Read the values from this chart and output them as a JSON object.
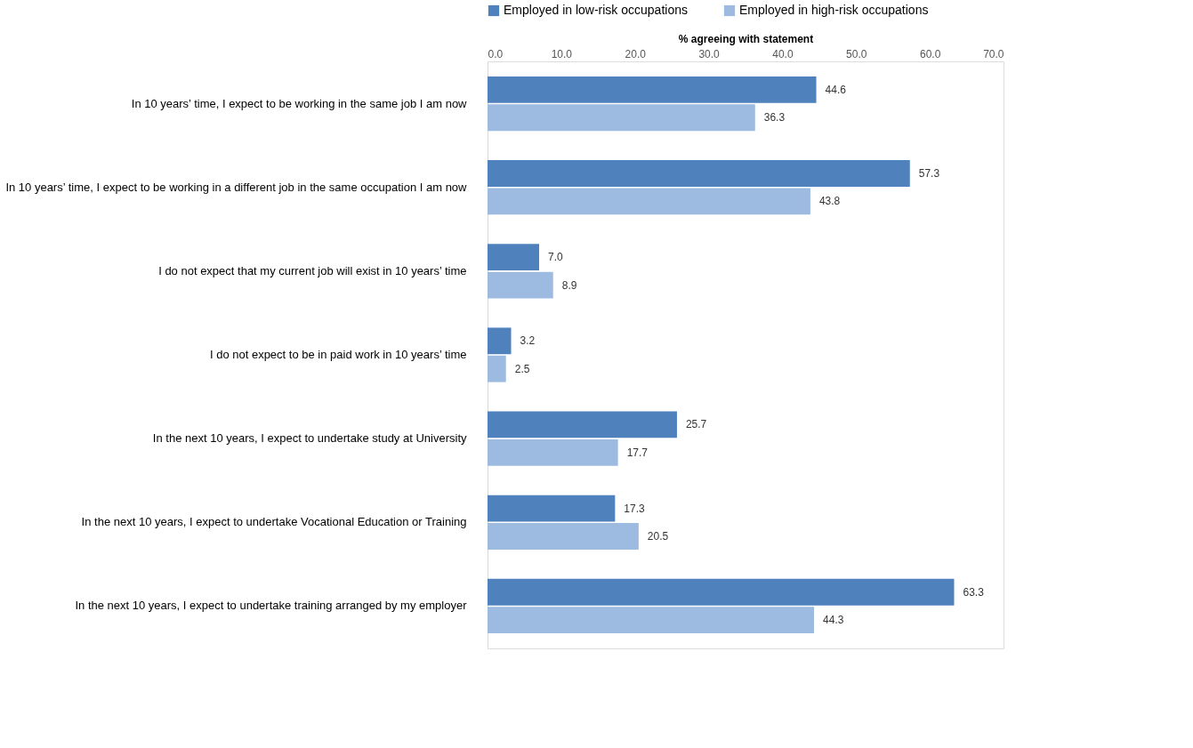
{
  "chart_data": {
    "type": "bar",
    "orientation": "horizontal",
    "xlabel": "% agreeing with statement",
    "categories": [
      "In 10 years’ time, I expect to be working in the same job I am now",
      "In 10 years’ time, I expect to be working in a different job in the same occupation I am now",
      "I do not expect that my current job will exist in 10 years’ time",
      "I do not expect to be in paid work in 10 years’ time",
      "In the next 10 years, I expect to undertake study at University",
      "In the next 10 years, I expect to undertake Vocational Education or Training",
      "In the next 10 years, I expect to undertake training arranged by my employer"
    ],
    "series": [
      {
        "name": "Employed in low-risk occupations",
        "color": "#4f81bd",
        "values": [
          44.6,
          57.3,
          7.0,
          3.2,
          25.7,
          17.3,
          63.3
        ]
      },
      {
        "name": "Employed in high-risk occupations",
        "color": "#9dbbe1",
        "values": [
          36.3,
          43.8,
          8.9,
          2.5,
          17.7,
          20.5,
          44.3
        ]
      }
    ],
    "value_labels": [
      [
        "44.6",
        "57.3",
        "7.0",
        "3.2",
        "25.7",
        "17.3",
        "63.3"
      ],
      [
        "36.3",
        "43.8",
        "8.9",
        "2.5",
        "17.7",
        "20.5",
        "44.3"
      ]
    ],
    "xlim": [
      0,
      70
    ],
    "xticks": [
      {
        "value": 0,
        "label": "0.0"
      },
      {
        "value": 10,
        "label": "10.0"
      },
      {
        "value": 20,
        "label": "20.0"
      },
      {
        "value": 30,
        "label": "30.0"
      },
      {
        "value": 40,
        "label": "40.0"
      },
      {
        "value": 50,
        "label": "50.0"
      },
      {
        "value": 60,
        "label": "60.0"
      },
      {
        "value": 70,
        "label": "70.0"
      }
    ],
    "grid": false,
    "legend": "top"
  }
}
